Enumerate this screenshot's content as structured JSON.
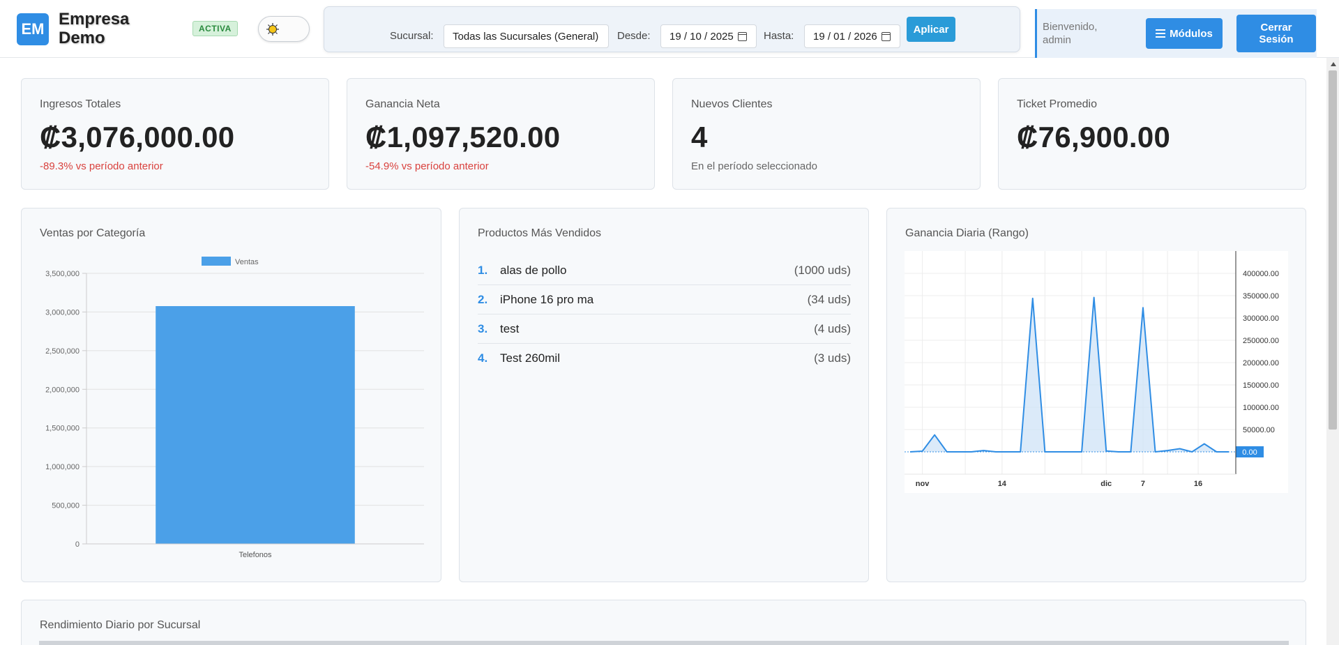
{
  "header": {
    "logo_initials": "EM",
    "company_name_line1": "Empresa",
    "company_name_line2": "Demo",
    "status_badge": "ACTIVA"
  },
  "filters": {
    "branch_label": "Sucursal:",
    "branch_value": "Todas las Sucursales (General)",
    "from_label": "Desde:",
    "from_value": "19 / 10 / 2025",
    "to_label": "Hasta:",
    "to_value": "19 / 01 / 2026",
    "apply_label": "Aplicar"
  },
  "user": {
    "welcome_line1": "Bienvenido,",
    "welcome_line2": "admin",
    "modules_label": "Módulos",
    "logout_line1": "Cerrar",
    "logout_line2": "Sesión"
  },
  "kpis": [
    {
      "label": "Ingresos Totales",
      "value": "₡3,076,000.00",
      "sub": "-89.3% vs período anterior"
    },
    {
      "label": "Ganancia Neta",
      "value": "₡1,097,520.00",
      "sub": "-54.9% vs período anterior"
    },
    {
      "label": "Nuevos Clientes",
      "value": "4",
      "sub": "En el período seleccionado"
    },
    {
      "label": "Ticket Promedio",
      "value": "₡76,900.00",
      "sub": ""
    }
  ],
  "sales_by_category": {
    "title": "Ventas por Categoría"
  },
  "top_products": {
    "title": "Productos Más Vendidos",
    "items": [
      {
        "rank": "1.",
        "name": "alas de pollo",
        "qty": "(1000 uds)"
      },
      {
        "rank": "2.",
        "name": "iPhone 16 pro ma",
        "qty": "(34 uds)"
      },
      {
        "rank": "3.",
        "name": "test",
        "qty": "(4 uds)"
      },
      {
        "rank": "4.",
        "name": "Test 260mil",
        "qty": "(3 uds)"
      }
    ]
  },
  "daily_profit": {
    "title": "Ganancia Diaria (Rango)"
  },
  "branch_performance": {
    "title": "Rendimiento Diario por Sucursal"
  },
  "chart_data": [
    {
      "type": "bar",
      "title": "",
      "categories": [
        "Telefonos"
      ],
      "series": [
        {
          "name": "Ventas",
          "values": [
            3076000
          ]
        }
      ],
      "ylim": [
        0,
        3500000
      ],
      "yticks": [
        "0",
        "500,000",
        "1,000,000",
        "1,500,000",
        "2,000,000",
        "2,500,000",
        "3,000,000",
        "3,500,000"
      ],
      "xlabel": "",
      "ylabel": "",
      "legend": "top-center",
      "grid": true,
      "colors": {
        "bar": "#4ba0e8"
      }
    },
    {
      "type": "area",
      "title": "",
      "x": [
        "2025-10-30",
        "2025-11-01",
        "2025-11-03",
        "2025-11-05",
        "2025-11-07",
        "2025-11-09",
        "2025-11-11",
        "2025-11-13",
        "2025-11-15",
        "2025-11-17",
        "2025-11-19",
        "2025-11-21",
        "2025-11-23",
        "2025-11-25",
        "2025-11-27",
        "2025-11-29",
        "2025-12-01",
        "2025-12-03",
        "2025-12-05",
        "2025-12-07",
        "2025-12-09",
        "2025-12-11",
        "2025-12-13",
        "2025-12-15",
        "2025-12-17",
        "2025-12-19",
        "2025-12-21"
      ],
      "y": [
        0,
        1500,
        38000,
        0,
        0,
        0,
        3000,
        0,
        0,
        0,
        344000,
        0,
        0,
        0,
        0,
        346000,
        2000,
        0,
        0,
        323000,
        0,
        3000,
        7000,
        0,
        18000,
        0,
        0
      ],
      "ylim": [
        -50000,
        450000
      ],
      "yticks": [
        "50000.00",
        "100000.00",
        "150000.00",
        "200000.00",
        "250000.00",
        "300000.00",
        "350000.00",
        "400000.00"
      ],
      "xticks": [
        "nov",
        "14",
        "dic",
        "7",
        "16"
      ],
      "last_value_label": "0.00",
      "grid": true,
      "y_axis_position": "right",
      "colors": {
        "line": "#2f8de4",
        "fill": "#cfe3f7"
      }
    }
  ]
}
